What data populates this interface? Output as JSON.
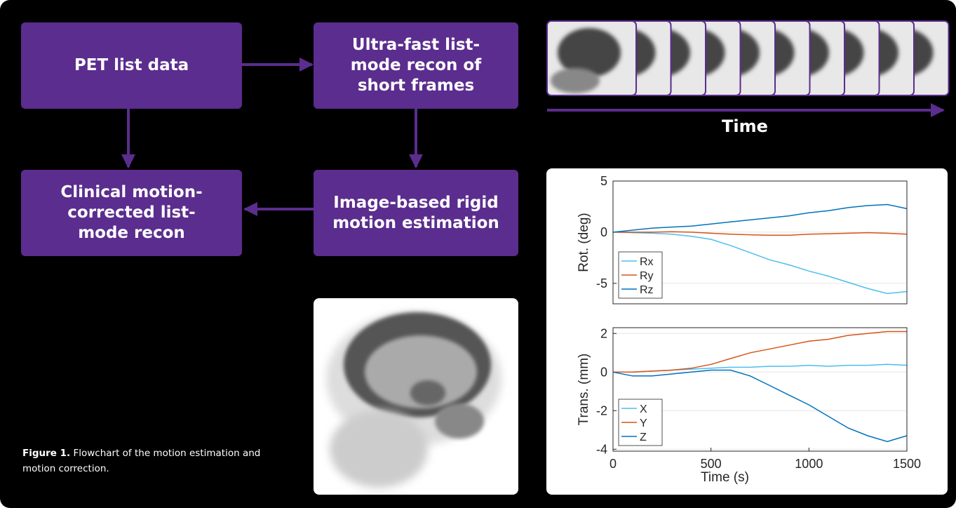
{
  "flowchart": {
    "nodes": [
      {
        "label": "PET list data"
      },
      {
        "label": "Ultra-fast list-mode recon of short frames"
      },
      {
        "label": "Clinical motion-corrected list-mode recon"
      },
      {
        "label": "Image-based rigid motion estimation"
      }
    ],
    "time_label": "Time",
    "caption": {
      "bold": "Figure 1.",
      "text": "Flowchart of the motion estimation and motion correction."
    }
  },
  "chart_data": [
    {
      "type": "line",
      "ylabel": "Rot. (deg)",
      "x": [
        0,
        100,
        200,
        300,
        400,
        500,
        600,
        700,
        800,
        900,
        1000,
        1100,
        1200,
        1300,
        1400,
        1500
      ],
      "xlim": [
        0,
        1500
      ],
      "ylim": [
        -7,
        5
      ],
      "yticks": [
        -5,
        0,
        5
      ],
      "grid": true,
      "legend": "lower-left",
      "series": [
        {
          "name": "Rx",
          "color": "#4dbeee",
          "values": [
            0,
            -0.05,
            -0.1,
            -0.2,
            -0.4,
            -0.7,
            -1.3,
            -2,
            -2.7,
            -3.2,
            -3.8,
            -4.3,
            -4.9,
            -5.5,
            -6,
            -5.8
          ]
        },
        {
          "name": "Ry",
          "color": "#d95319",
          "values": [
            0,
            0,
            0,
            0.05,
            0,
            -0.1,
            -0.2,
            -0.25,
            -0.3,
            -0.3,
            -0.2,
            -0.15,
            -0.1,
            -0.05,
            -0.1,
            -0.2
          ]
        },
        {
          "name": "Rz",
          "color": "#0072bd",
          "values": [
            0,
            0.2,
            0.4,
            0.5,
            0.6,
            0.8,
            1.0,
            1.2,
            1.4,
            1.6,
            1.9,
            2.1,
            2.4,
            2.6,
            2.7,
            2.3
          ]
        }
      ]
    },
    {
      "type": "line",
      "ylabel": "Trans. (mm)",
      "xlabel": "Time (s)",
      "x": [
        0,
        100,
        200,
        300,
        400,
        500,
        600,
        700,
        800,
        900,
        1000,
        1100,
        1200,
        1300,
        1400,
        1500
      ],
      "xlim": [
        0,
        1500
      ],
      "xticks": [
        0,
        500,
        1000,
        1500
      ],
      "ylim": [
        -4.1,
        2.3
      ],
      "yticks": [
        -4,
        -2,
        0,
        2
      ],
      "grid": true,
      "legend": "lower-left",
      "series": [
        {
          "name": "X",
          "color": "#4dbeee",
          "values": [
            0,
            0,
            0.05,
            0.1,
            0.15,
            0.2,
            0.25,
            0.25,
            0.3,
            0.3,
            0.35,
            0.3,
            0.35,
            0.35,
            0.4,
            0.35
          ]
        },
        {
          "name": "Y",
          "color": "#d95319",
          "values": [
            0,
            0,
            0.05,
            0.1,
            0.2,
            0.4,
            0.7,
            1.0,
            1.2,
            1.4,
            1.6,
            1.7,
            1.9,
            2.0,
            2.1,
            2.1
          ]
        },
        {
          "name": "Z",
          "color": "#0072bd",
          "values": [
            0,
            -0.2,
            -0.2,
            -0.1,
            0,
            0.1,
            0.1,
            -0.2,
            -0.7,
            -1.2,
            -1.7,
            -2.3,
            -2.9,
            -3.3,
            -3.6,
            -3.3
          ]
        }
      ]
    }
  ]
}
